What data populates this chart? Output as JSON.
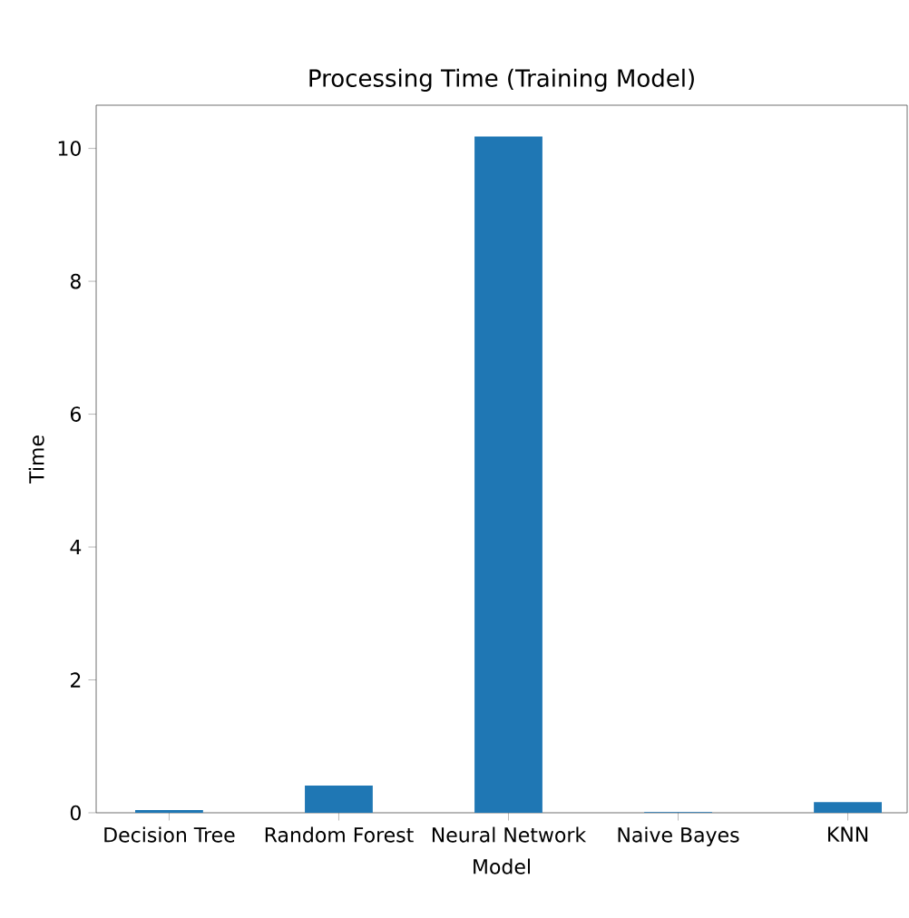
{
  "chart_data": {
    "type": "bar",
    "title": "Processing Time (Training Model)",
    "xlabel": "Model",
    "ylabel": "Time",
    "categories": [
      "Decision Tree",
      "Random Forest",
      "Neural Network",
      "Naive Bayes",
      "KNN"
    ],
    "values": [
      0.04,
      0.41,
      10.18,
      0.01,
      0.16
    ],
    "color": "#1f77b4",
    "ylim": [
      0,
      10.65
    ],
    "yticks": [
      0,
      2,
      4,
      6,
      8,
      10
    ]
  }
}
